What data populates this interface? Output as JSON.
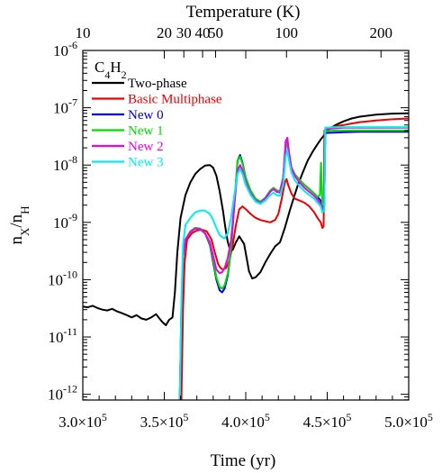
{
  "chart_data": {
    "type": "line",
    "species_label": {
      "base": "C",
      "sub1": "4",
      "mid": "H",
      "sub2": "2"
    },
    "xlabel": "Time (yr)",
    "ylabel": {
      "base": "n",
      "sub1": "X",
      "mid": "/n",
      "sub2": "H"
    },
    "top_axis_label": "Temperature (K)",
    "xlim": [
      300000,
      500000
    ],
    "ylim_log10": [
      -12.1,
      -6
    ],
    "y_scale": "log",
    "grid": false,
    "legend_position": "top-left",
    "x_ticks": [
      {
        "v": 300000,
        "m": "3.0",
        "e": "5"
      },
      {
        "v": 350000,
        "m": "3.5",
        "e": "5"
      },
      {
        "v": 400000,
        "m": "4.0",
        "e": "5"
      },
      {
        "v": 450000,
        "m": "4.5",
        "e": "5"
      },
      {
        "v": 500000,
        "m": "5.0",
        "e": "5"
      }
    ],
    "y_ticks": [
      {
        "e": -12,
        "label": "-12"
      },
      {
        "e": -11,
        "label": "-11"
      },
      {
        "e": -10,
        "label": "-10"
      },
      {
        "e": -9,
        "label": "-9"
      },
      {
        "e": -8,
        "label": "-8"
      },
      {
        "e": -7,
        "label": "-7"
      },
      {
        "e": -6,
        "label": "-6"
      }
    ],
    "top_ticks": [
      {
        "x": 300000,
        "label": "10"
      },
      {
        "x": 350000,
        "label": "20"
      },
      {
        "x": 362000,
        "label": "30"
      },
      {
        "x": 373500,
        "label": "40"
      },
      {
        "x": 381500,
        "label": "50"
      },
      {
        "x": 425000,
        "label": "100"
      },
      {
        "x": 483000,
        "label": "200"
      }
    ],
    "series": [
      {
        "name": "Two-phase",
        "color": "#000000",
        "x": [
          300000,
          303000,
          306000,
          309000,
          312000,
          315000,
          318000,
          321000,
          324000,
          327000,
          330000,
          333000,
          336000,
          339000,
          342000,
          345000,
          347000,
          349000,
          351000,
          353000,
          355000,
          356500,
          358000,
          360000,
          363000,
          366000,
          369000,
          372000,
          375000,
          378000,
          380000,
          382000,
          384000,
          386000,
          387000,
          388000,
          389000,
          390000,
          392000,
          394000,
          396000,
          399000,
          402000,
          404000,
          406000,
          409000,
          412000,
          415000,
          418000,
          421000,
          424000,
          427000,
          430000,
          432000,
          435000,
          438000,
          441000,
          444000,
          446000,
          448000,
          450000,
          455000,
          460000,
          465000,
          470000,
          480000,
          490000,
          500000
        ],
        "y": [
          3.4e-11,
          3.3e-11,
          3.5e-11,
          3.2e-11,
          3e-11,
          2.9e-11,
          3.1e-11,
          2.8e-11,
          2.6e-11,
          2.4e-11,
          2.2e-11,
          2.4e-11,
          2.1e-11,
          2e-11,
          2.2e-11,
          2.5e-11,
          2.1e-11,
          1.8e-11,
          1.6e-11,
          2e-11,
          2.2e-11,
          6e-11,
          3e-10,
          1.2e-09,
          3e-09,
          5e-09,
          7e-09,
          8.5e-09,
          9.8e-09,
          1e-08,
          9e-09,
          6.5e-09,
          3.5e-09,
          1.6e-09,
          1e-09,
          6.5e-10,
          4.5e-10,
          3.6e-10,
          3.3e-10,
          4.5e-10,
          5.7e-10,
          4.2e-10,
          1.4e-10,
          1.05e-10,
          1.1e-10,
          1.35e-10,
          2e-10,
          2.8e-10,
          3.8e-10,
          4.5e-10,
          8e-10,
          1.6e-09,
          3e-09,
          4.5e-09,
          7.5e-09,
          1.2e-08,
          1.7e-08,
          2.3e-08,
          2.8e-08,
          3.3e-08,
          4e-08,
          5e-08,
          5.8e-08,
          6.5e-08,
          7e-08,
          7.6e-08,
          7.9e-08,
          8e-08
        ]
      },
      {
        "name": "Basic Multiphase",
        "color": "#ee0000",
        "x": [
          360500,
          361500,
          362500,
          364000,
          367000,
          370000,
          373000,
          376000,
          379000,
          381000,
          383000,
          384500,
          386000,
          388000,
          390000,
          392000,
          394000,
          396000,
          398000,
          400000,
          403000,
          406000,
          409000,
          412000,
          415000,
          418000,
          420000,
          422000,
          424000,
          425000,
          426000,
          428000,
          430000,
          433000,
          436000,
          439000,
          442000,
          444000,
          446000,
          447000,
          447800,
          448300,
          449000,
          452000,
          456000,
          460000,
          465000,
          470000,
          480000,
          490000,
          500000
        ],
        "y": [
          8e-13,
          3e-11,
          2e-10,
          5e-10,
          6.5e-10,
          7.2e-10,
          7.5e-10,
          7e-10,
          5e-10,
          3e-10,
          1.9e-10,
          1.6e-10,
          1.5e-10,
          1.6e-10,
          2.2e-10,
          4e-10,
          9e-10,
          1.7e-09,
          1.9e-09,
          1.7e-09,
          1.4e-09,
          1.2e-09,
          1.1e-09,
          1.05e-09,
          1e-09,
          1.1e-09,
          1.4e-09,
          2.5e-09,
          5e-09,
          5.7e-09,
          4.5e-09,
          3.2e-09,
          2.6e-09,
          2.4e-09,
          2.2e-09,
          1.9e-09,
          1.5e-09,
          1.2e-09,
          1e-09,
          8e-10,
          8.5e-10,
          4e-08,
          4.2e-08,
          4.5e-08,
          4.8e-08,
          5e-08,
          5.3e-08,
          5.6e-08,
          6e-08,
          6.3e-08,
          6.5e-08
        ]
      },
      {
        "name": "New 0",
        "color": "#0000dd",
        "x": [
          359500,
          360500,
          361500,
          363000,
          366000,
          369000,
          372000,
          375000,
          378000,
          380000,
          382000,
          384000,
          385500,
          387000,
          389000,
          391000,
          393000,
          395000,
          396500,
          398000,
          400000,
          403000,
          406000,
          409000,
          412000,
          415000,
          417000,
          419000,
          421000,
          423000,
          424500,
          425500,
          426500,
          428000,
          430000,
          433000,
          436000,
          439000,
          442000,
          444000,
          446000,
          447000,
          448200,
          448800,
          452000,
          456000,
          460000,
          470000,
          480000,
          490000,
          500000
        ],
        "y": [
          8e-13,
          3e-11,
          2.5e-10,
          5e-10,
          7e-10,
          8e-10,
          7.8e-10,
          6.5e-10,
          4e-10,
          2e-10,
          1e-10,
          6.5e-11,
          6e-11,
          7e-11,
          1.2e-10,
          3.5e-10,
          2e-09,
          1.2e-08,
          1.5e-08,
          1.1e-08,
          6e-09,
          3.5e-09,
          2.5e-09,
          2.2e-09,
          2.6e-09,
          3.5e-09,
          4e-09,
          3.6e-09,
          3.5e-09,
          6e-09,
          2e-08,
          2.5e-08,
          1.6e-08,
          9e-09,
          7e-09,
          5.5e-09,
          4.5e-09,
          3.8e-09,
          3.2e-09,
          2.8e-09,
          2.4e-09,
          1.9e-09,
          2e-09,
          3.6e-08,
          3.65e-08,
          3.7e-08,
          3.75e-08,
          3.8e-08,
          3.8e-08,
          3.8e-08,
          3.8e-08
        ]
      },
      {
        "name": "New 1",
        "color": "#00dd00",
        "x": [
          359500,
          360500,
          361500,
          363000,
          366000,
          369000,
          372000,
          375000,
          378000,
          380000,
          382000,
          384000,
          385500,
          387000,
          389000,
          391000,
          393000,
          395000,
          396500,
          398000,
          400000,
          403000,
          406000,
          409000,
          412000,
          415000,
          417000,
          419000,
          421000,
          423000,
          424500,
          425500,
          426500,
          428000,
          430000,
          433000,
          436000,
          439000,
          442000,
          444000,
          445500,
          446200,
          447000,
          448200,
          448800,
          452000,
          456000,
          460000,
          470000,
          480000,
          490000,
          500000
        ],
        "y": [
          8e-13,
          3e-11,
          2.5e-10,
          5e-10,
          7e-10,
          8e-10,
          7.8e-10,
          6.5e-10,
          4.2e-10,
          2.2e-10,
          1.1e-10,
          7.5e-11,
          7e-11,
          8e-11,
          1.3e-10,
          3.8e-10,
          2.2e-09,
          1.2e-08,
          1.4e-08,
          1.05e-08,
          6e-09,
          3.6e-09,
          2.6e-09,
          2.3e-09,
          2.7e-09,
          3.6e-09,
          4e-09,
          3.6e-09,
          3.5e-09,
          6e-09,
          2e-08,
          2.4e-08,
          1.6e-08,
          9e-09,
          7e-09,
          5.5e-09,
          4.5e-09,
          3.8e-09,
          3.2e-09,
          2.8e-09,
          3e-09,
          1.1e-08,
          2e-09,
          2e-09,
          3.9e-08,
          3.95e-08,
          4e-08,
          4e-08,
          4e-08,
          4e-08,
          4e-08,
          4e-08
        ]
      },
      {
        "name": "New 2",
        "color": "#ee00ee",
        "x": [
          359500,
          360500,
          361500,
          363000,
          366000,
          369000,
          372000,
          375000,
          378000,
          380000,
          382000,
          384000,
          385500,
          387000,
          389000,
          391000,
          393000,
          395000,
          396500,
          398000,
          400000,
          403000,
          406000,
          409000,
          412000,
          415000,
          417000,
          419000,
          421000,
          423000,
          424500,
          425500,
          426500,
          428000,
          430000,
          433000,
          436000,
          439000,
          442000,
          444000,
          446000,
          447000,
          448200,
          448800,
          452000,
          456000,
          460000,
          470000,
          480000,
          490000,
          500000
        ],
        "y": [
          8e-13,
          3e-11,
          2.5e-10,
          5e-10,
          6.8e-10,
          7.8e-10,
          7.6e-10,
          6.4e-10,
          4.5e-10,
          2.6e-10,
          1.5e-10,
          1.3e-10,
          1.35e-10,
          1.6e-10,
          2.4e-10,
          5e-10,
          2e-09,
          8e-09,
          1e-08,
          8e-09,
          5e-09,
          3.2e-09,
          2.4e-09,
          2.2e-09,
          2.6e-09,
          3.4e-09,
          3.8e-09,
          3.4e-09,
          3.3e-09,
          6e-09,
          2.6e-08,
          3e-08,
          1.7e-08,
          9e-09,
          6.5e-09,
          5e-09,
          4e-09,
          3.4e-09,
          2.9e-09,
          2.5e-09,
          2.1e-09,
          1.7e-09,
          1.8e-09,
          4.2e-08,
          4.3e-08,
          4.4e-08,
          4.5e-08,
          4.5e-08,
          4.5e-08,
          4.5e-08,
          4.5e-08
        ]
      },
      {
        "name": "New 3",
        "color": "#00eeee",
        "x": [
          359500,
          360500,
          361500,
          363000,
          366000,
          369000,
          372000,
          375000,
          378000,
          380000,
          382000,
          384000,
          385500,
          387000,
          389000,
          391000,
          393000,
          395000,
          396500,
          398000,
          400000,
          403000,
          406000,
          409000,
          412000,
          415000,
          417000,
          419000,
          421000,
          423000,
          424500,
          425500,
          426500,
          428000,
          430000,
          433000,
          436000,
          439000,
          442000,
          444000,
          446000,
          447000,
          448200,
          448800,
          452000,
          456000,
          460000,
          470000,
          480000,
          490000,
          500000
        ],
        "y": [
          8e-13,
          4e-11,
          4e-10,
          9e-10,
          1.2e-09,
          1.5e-09,
          1.6e-09,
          1.6e-09,
          1.4e-09,
          1.1e-09,
          8e-10,
          6e-10,
          5.5e-10,
          5.3e-10,
          6.5e-10,
          1.2e-09,
          3e-09,
          7e-09,
          8.5e-09,
          7e-09,
          4.5e-09,
          3e-09,
          2.3e-09,
          2.1e-09,
          2.4e-09,
          3e-09,
          3.3e-09,
          3e-09,
          2.9e-09,
          4.5e-09,
          1.4e-08,
          1.8e-08,
          1.2e-08,
          7.5e-09,
          5.5e-09,
          4.3e-09,
          3.5e-09,
          3e-09,
          2.6e-09,
          2.2e-09,
          1.9e-09,
          1.5e-09,
          1.6e-09,
          4.5e-08,
          4.55e-08,
          4.6e-08,
          4.6e-08,
          4.6e-08,
          4.6e-08,
          4.6e-08,
          4.6e-08
        ]
      }
    ]
  }
}
